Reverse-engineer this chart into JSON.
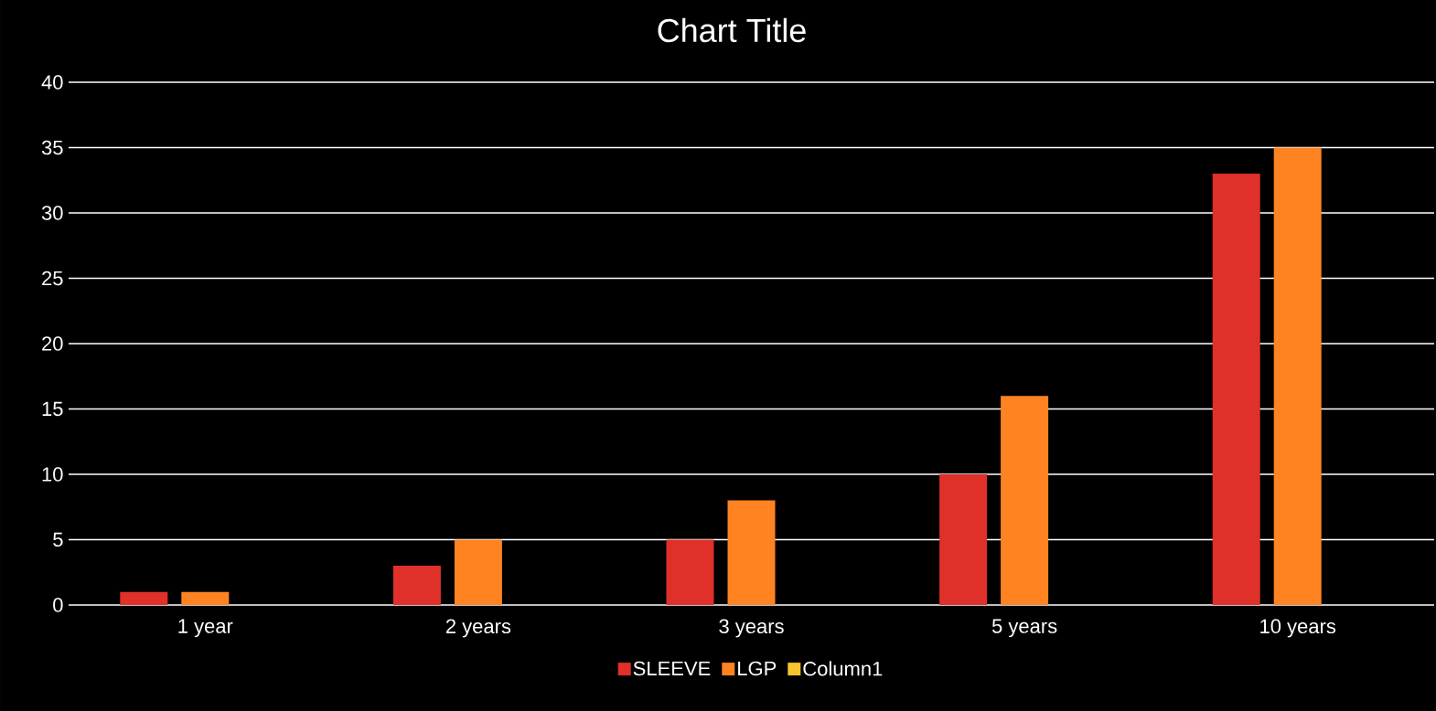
{
  "chart_data": {
    "type": "bar",
    "title": "Chart Title",
    "categories": [
      "1 year",
      "2 years",
      "3 years",
      "5 years",
      "10 years"
    ],
    "series": [
      {
        "name": "SLEEVE",
        "color": "#e0302a",
        "values": [
          1,
          3,
          5,
          10,
          33
        ]
      },
      {
        "name": "LGP",
        "color": "#ff8321",
        "values": [
          1,
          5,
          8,
          16,
          35
        ]
      },
      {
        "name": "Column1",
        "color": "#f5c42f",
        "values": [
          null,
          null,
          null,
          null,
          null
        ]
      }
    ],
    "ylim": [
      0,
      40
    ],
    "yticks": [
      0,
      5,
      10,
      15,
      20,
      25,
      30,
      35,
      40
    ],
    "grid": "y",
    "legend": "bottom"
  }
}
